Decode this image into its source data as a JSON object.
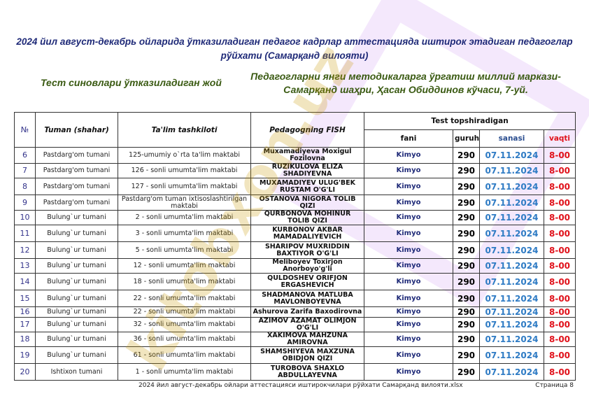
{
  "title": "2024 йил август-декабрь ойларида ўтказиладиган педагог кадрлар аттестацияда иштирок этадиган педагоглар рўйхати (Самарқанд вилояти)",
  "place": {
    "label": "Тест синовлари ўтказиладиган жой",
    "value": "Педагогларни янги методикаларга ўргатиш миллий маркази-Самарқанд шаҳри, Ҳасан Обиддинов кўчаси, 7-уй."
  },
  "table": {
    "headers": {
      "no": "№",
      "district": "Tuman (shahar)",
      "school": "Ta'lim tashkiloti",
      "name": "Pedagogning FISH",
      "test": "Test topshiradigan",
      "subject": "fani",
      "group": "guruhi",
      "date": "sanasi",
      "time": "vaqti"
    },
    "rows": [
      {
        "no": "6",
        "district": "Pastdarg'om tumani",
        "school": "125-umumiy o`rta ta'lim maktabi",
        "name": "Muxamadiyeva Moxigul Fozilovna",
        "subject": "Kimyo",
        "group": "290",
        "date": "07.11.2024",
        "time": "8-00"
      },
      {
        "no": "7",
        "district": "Pastdarg'om tumani",
        "school": "126 - sonli umumta'lim maktabi",
        "name": "RUZIKULOVA ELIZA SHADIYEVNA",
        "subject": "Kimyo",
        "group": "290",
        "date": "07.11.2024",
        "time": "8-00"
      },
      {
        "no": "8",
        "district": "Pastdarg'om tumani",
        "school": "127 - sonli umumta'lim maktabi",
        "name": "MUXAMADIYEV ULUG'BEK RUSTAM O'G'LI",
        "subject": "Kimyo",
        "group": "290",
        "date": "07.11.2024",
        "time": "8-00"
      },
      {
        "no": "9",
        "district": "Pastdarg'om tumani",
        "school": "Pastdarg'om tuman ixtisoslashtirilgan maktabi",
        "name": "OSTANOVA NIGORA TOLIB QIZI",
        "subject": "Kimyo",
        "group": "290",
        "date": "07.11.2024",
        "time": "8-00"
      },
      {
        "no": "10",
        "district": "Bulung`ur tumani",
        "school": "2 - sonli umumta'lim maktabi",
        "name": "QURBONOVA MOHINUR TOLIB QIZI",
        "subject": "Kimyo",
        "group": "290",
        "date": "07.11.2024",
        "time": "8-00"
      },
      {
        "no": "11",
        "district": "Bulung`ur tumani",
        "school": "3 - sonli umumta'lim maktabi",
        "name": "KURBONOV AKBAR MAMADALIYEVICH",
        "subject": "Kimyo",
        "group": "290",
        "date": "07.11.2024",
        "time": "8-00"
      },
      {
        "no": "12",
        "district": "Bulung`ur tumani",
        "school": "5 - sonli umumta'lim maktabi",
        "name": "SHARIPOV MUXRIDDIN BAXTIYOR O'G'LI",
        "subject": "Kimyo",
        "group": "290",
        "date": "07.11.2024",
        "time": "8-00"
      },
      {
        "no": "13",
        "district": "Bulung`ur tumani",
        "school": "12 - sonli umumta'lim maktabi",
        "name": "Meliboyev Toxirjon Anorboyo'g'li",
        "subject": "Kimyo",
        "group": "290",
        "date": "07.11.2024",
        "time": "8-00"
      },
      {
        "no": "14",
        "district": "Bulung`ur tumani",
        "school": "18 - sonli umumta'lim maktabi",
        "name": "QULDOSHEV ORIFJON ERGASHEVICH",
        "subject": "Kimyo",
        "group": "290",
        "date": "07.11.2024",
        "time": "8-00"
      },
      {
        "no": "15",
        "district": "Bulung`ur tumani",
        "school": "22 - sonli umumta'lim maktabi",
        "name": "SHADMANOVA MATLUBA MAVLONBOYEVNA",
        "subject": "Kimyo",
        "group": "290",
        "date": "07.11.2024",
        "time": "8-00"
      },
      {
        "no": "16",
        "district": "Bulung`ur tumani",
        "school": "22 - sonli umumta'lim maktabi",
        "name": "Ashurova Zarifa Baxodirovna",
        "subject": "Kimyo",
        "group": "290",
        "date": "07.11.2024",
        "time": "8-00"
      },
      {
        "no": "17",
        "district": "Bulung`ur tumani",
        "school": "32 - sonli umumta'lim maktabi",
        "name": "AZIMOV AZAMAT OLIMJON O'G'LI",
        "subject": "Kimyo",
        "group": "290",
        "date": "07.11.2024",
        "time": "8-00"
      },
      {
        "no": "18",
        "district": "Bulung`ur tumani",
        "school": "36 - sonli umumta'lim maktabi",
        "name": "XAKIMOVA MAHZUNA AMIROVNA",
        "subject": "Kimyo",
        "group": "290",
        "date": "07.11.2024",
        "time": "8-00"
      },
      {
        "no": "19",
        "district": "Bulung`ur tumani",
        "school": "61 - sonli umumta'lim maktabi",
        "name": "SHAMSHIYEVA MAXZUNA OBIDJON QIZI",
        "subject": "Kimyo",
        "group": "290",
        "date": "07.11.2024",
        "time": "8-00"
      },
      {
        "no": "20",
        "district": "Ishtixon tumani",
        "school": "1 - sonli umumta'lim maktabi",
        "name": "TUROBOVA SHAXLO ABDULLAYEVNA",
        "subject": "Kimyo",
        "group": "290",
        "date": "07.11.2024",
        "time": "8-00"
      }
    ]
  },
  "footer": {
    "filename": "2024 йил август-декабрь ойлари аттестацияси иштирокчилари рўйхати Самарқанд вилояти.xlsx",
    "page": "Страница 8"
  },
  "watermark": "www.kitobxon.uz",
  "colors": {
    "title": "#1f2a78",
    "place": "#3a5a12",
    "date": "#2e7bc4",
    "time": "#e0121b"
  }
}
